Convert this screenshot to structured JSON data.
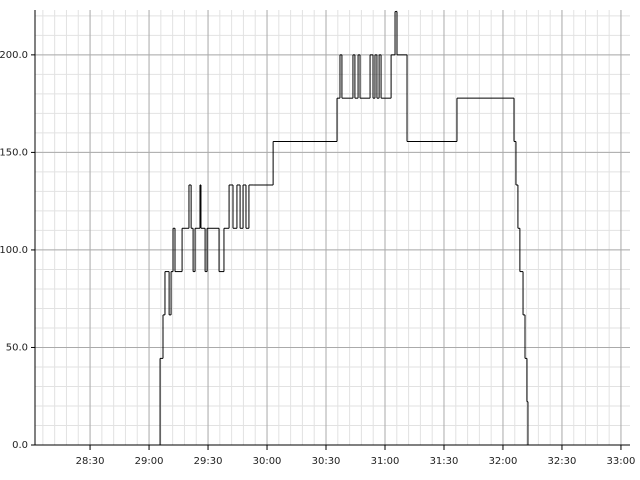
{
  "chart_data": {
    "type": "step",
    "x": [
      1682.0,
      1745.6,
      1747.1,
      1748.1,
      1750.2,
      1751.2,
      1752.2,
      1753.2,
      1756.8,
      1760.3,
      1761.4,
      1762.4,
      1763.4,
      1765.9,
      1766.4,
      1768.5,
      1769.5,
      1775.6,
      1778.1,
      1780.7,
      1782.7,
      1784.7,
      1786.3,
      1787.8,
      1789.3,
      1790.8,
      1792.9,
      1803.1,
      1835.6,
      1837.1,
      1838.1,
      1843.7,
      1844.7,
      1846.3,
      1847.3,
      1852.4,
      1853.9,
      1854.9,
      1855.9,
      1857.0,
      1858.0,
      1863.1,
      1865.1,
      1866.1,
      1871.2,
      1896.6,
      1925.6,
      1926.6,
      1927.6,
      1928.6,
      1930.2,
      1931.2,
      1932.2,
      1932.7,
      1984.6
    ],
    "series": [
      {
        "color": "#000000",
        "values": [
          0,
          44.4,
          66.7,
          88.9,
          66.7,
          88.9,
          111.1,
          88.9,
          111.1,
          133.3,
          111.1,
          88.9,
          111.1,
          133.3,
          111.1,
          88.9,
          111.1,
          88.9,
          111.1,
          133.3,
          111.1,
          133.3,
          111.1,
          133.3,
          111.1,
          133.3,
          133.3,
          155.6,
          177.8,
          200,
          177.8,
          200,
          177.8,
          200,
          177.8,
          200,
          177.8,
          200,
          177.8,
          200,
          177.8,
          200,
          222.2,
          200,
          155.6,
          177.8,
          155.6,
          133.3,
          111.1,
          88.9,
          66.7,
          44.4,
          22.2,
          0,
          0
        ]
      }
    ],
    "xlim": [
      1682,
      1984.6
    ],
    "ylim": [
      0,
      223
    ],
    "xticks": [
      {
        "value": 1710,
        "label": "28:30"
      },
      {
        "value": 1740,
        "label": "29:00"
      },
      {
        "value": 1770,
        "label": "29:30"
      },
      {
        "value": 1800,
        "label": "30:00"
      },
      {
        "value": 1830,
        "label": "30:30"
      },
      {
        "value": 1860,
        "label": "31:00"
      },
      {
        "value": 1890,
        "label": "31:30"
      },
      {
        "value": 1920,
        "label": "32:00"
      },
      {
        "value": 1950,
        "label": "32:30"
      },
      {
        "value": 1980,
        "label": "33:00"
      }
    ],
    "yticks": [
      {
        "value": 0,
        "label": "0.0"
      },
      {
        "value": 50,
        "label": "50.0"
      },
      {
        "value": 100,
        "label": "100.0"
      },
      {
        "value": 150,
        "label": "150.0"
      },
      {
        "value": 200,
        "label": "200.0"
      }
    ],
    "grid": true
  }
}
